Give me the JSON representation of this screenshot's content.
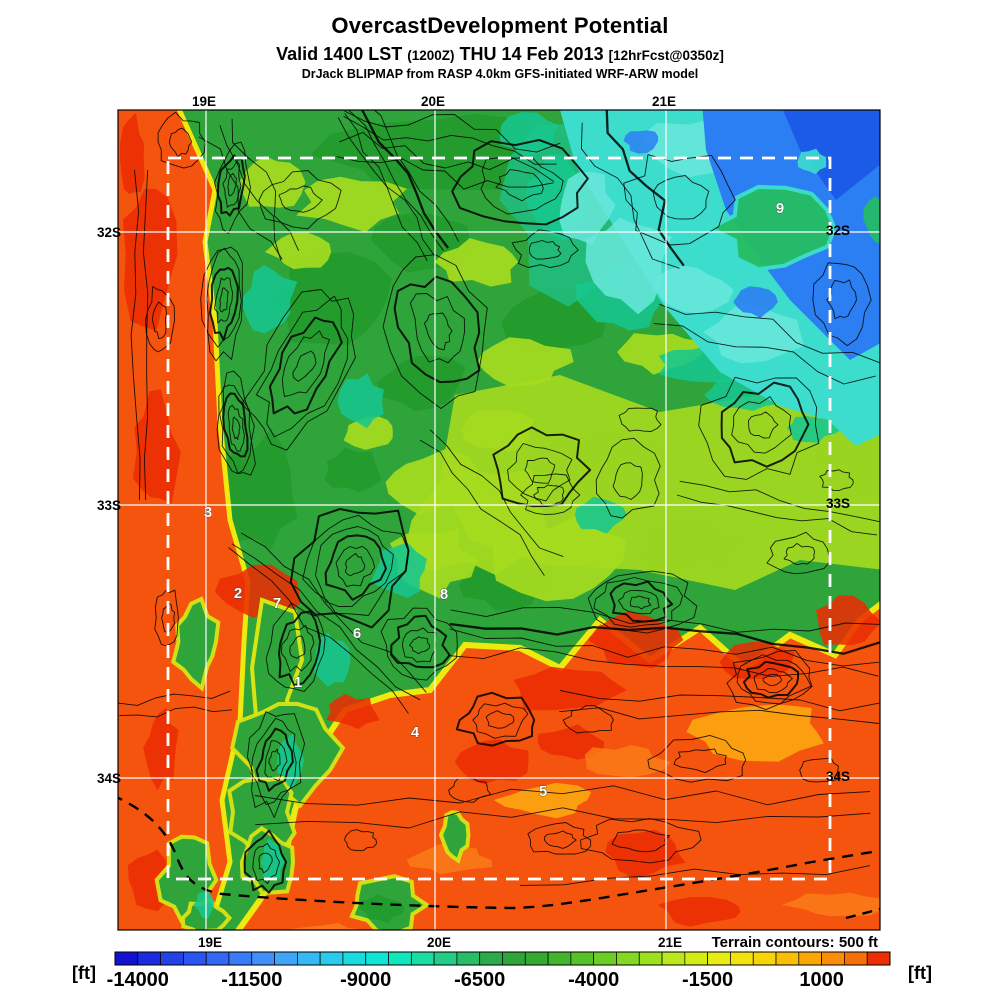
{
  "header": {
    "title": "OvercastDevelopment Potential",
    "valid_prefix": "Valid 1400 LST",
    "valid_zulu": "(1200Z)",
    "valid_date": "THU 14 Feb 2013",
    "valid_fcst": "[12hrFcst@0350z]",
    "model_line": "DrJack BLIPMAP from RASP 4.0km GFS-initiated WRF-ARW model"
  },
  "chart_data": {
    "type": "heatmap",
    "title": "OvercastDevelopment Potential",
    "units": "ft",
    "x_axis": {
      "labels": [
        "19E",
        "20E",
        "21E"
      ]
    },
    "y_axis": {
      "labels": [
        "32S",
        "33S",
        "34S"
      ]
    },
    "annotations": [
      "Terrain contours: 500 ft"
    ],
    "colorbar": {
      "unit": "[ft]",
      "ticks": [
        "-14000",
        "-11500",
        "-9000",
        "-6500",
        "-4000",
        "-1500",
        "1000"
      ],
      "step_ft": 500,
      "range_ft": [
        -14500,
        2500
      ],
      "colors": [
        "#1212CE",
        "#1B2BDD",
        "#2341E8",
        "#2A55F0",
        "#3268F5",
        "#3A7CF8",
        "#418FFA",
        "#3FA5F8",
        "#35B9F2",
        "#28CCEA",
        "#19DBE0",
        "#0FE5D2",
        "#12E6BC",
        "#1BDCA2",
        "#24CD85",
        "#28BC66",
        "#2BAC4C",
        "#2EA439",
        "#35AA31",
        "#43B52D",
        "#55C229",
        "#6CCE25",
        "#85D822",
        "#9FE01E",
        "#BAE81A",
        "#D3EC16",
        "#E7EC12",
        "#F2E30E",
        "#F7D30A",
        "#FABE07",
        "#FAA705",
        "#F98D04",
        "#F77007",
        "#ED2E04"
      ]
    },
    "sites": [
      {
        "id": "1",
        "fx": 0.236,
        "fy": 0.698
      },
      {
        "id": "2",
        "fx": 0.157,
        "fy": 0.589
      },
      {
        "id": "3",
        "fx": 0.118,
        "fy": 0.49
      },
      {
        "id": "4",
        "fx": 0.39,
        "fy": 0.759
      },
      {
        "id": "5",
        "fx": 0.558,
        "fy": 0.83
      },
      {
        "id": "6",
        "fx": 0.314,
        "fy": 0.638
      },
      {
        "id": "7",
        "fx": 0.209,
        "fy": 0.601
      },
      {
        "id": "8",
        "fx": 0.428,
        "fy": 0.59
      },
      {
        "id": "9",
        "fx": 0.869,
        "fy": 0.12
      }
    ],
    "field_grid_ft": {
      "note": "approximate OD potential values (ft) on an 8x8 grid, west-to-east per row, north-to-south rows",
      "rows": [
        [
          1000,
          -6500,
          -7000,
          -6500,
          -8500,
          -9500,
          -10500,
          -12000
        ],
        [
          1000,
          -6500,
          -7000,
          -7000,
          -8000,
          -9500,
          -9500,
          -10000
        ],
        [
          1000,
          -8000,
          -7000,
          -6500,
          -7500,
          -8500,
          -9500,
          -8500
        ],
        [
          1000,
          -7000,
          -6500,
          -5000,
          -5000,
          -6500,
          -6000,
          -5000
        ],
        [
          1000,
          500,
          -6500,
          -3500,
          -4500,
          -3500,
          -1000,
          500
        ],
        [
          1000,
          -6500,
          -6000,
          -1000,
          500,
          800,
          1000,
          -1500
        ],
        [
          -500,
          -5500,
          -1000,
          500,
          -1000,
          -1200,
          -2500,
          -1000
        ],
        [
          -800,
          -5000,
          -1000,
          -6000,
          -1000,
          -1000,
          -1200,
          -1000
        ]
      ]
    },
    "region_colors": {
      "ocean_coast_orange": "#F5540E",
      "red_max": "#EB2D03",
      "green_mid": "#2EA43A",
      "green_dark": "#219B2C",
      "yellow_green": "#A6DC1F",
      "yellow": "#EEE90F",
      "teal": "#17C68E",
      "cyan": "#3CDDCD",
      "blue": "#2C7FF2",
      "blue_dark": "#1C5BE8"
    }
  }
}
